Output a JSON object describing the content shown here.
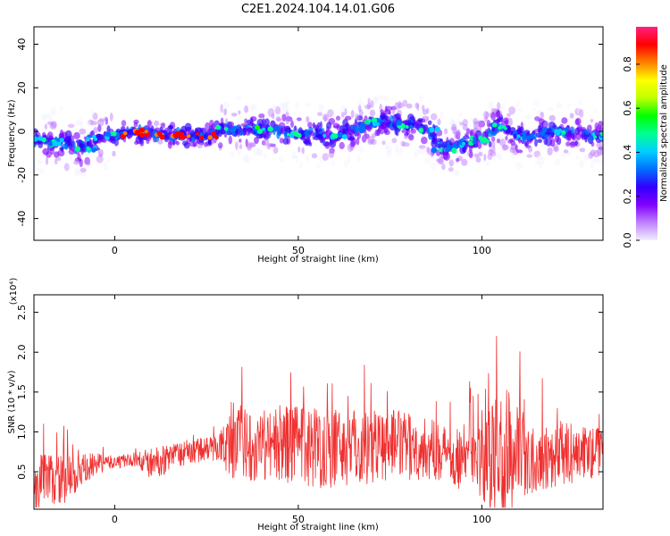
{
  "title": "C2E1.2024.104.14.01.G06",
  "colors": {
    "snr_line": "#f03030",
    "axis": "#000000",
    "colormap": [
      "#f0f0ff",
      "#c080ff",
      "#8000ff",
      "#3000ff",
      "#0070ff",
      "#00d0ff",
      "#00ff90",
      "#00ff00",
      "#c0ff00",
      "#ffff00",
      "#ff8000",
      "#ff0000",
      "#ff2080"
    ]
  },
  "chart_data": [
    {
      "type": "heatmap",
      "xlabel": "Height of straight line (km)",
      "ylabel": "Frequency (Hz)",
      "xlim": [
        -22,
        133
      ],
      "ylim": [
        -50,
        48
      ],
      "x_ticks": [
        0,
        50,
        100
      ],
      "y_ticks": [
        -40,
        -20,
        0,
        20,
        40
      ],
      "colorbar": {
        "label": "Normalized spectral amplitude",
        "range": [
          0,
          0.97
        ],
        "ticks": [
          0.0,
          0.2,
          0.4,
          0.6,
          0.8
        ]
      },
      "ridge": [
        {
          "x": -22,
          "f": -4
        },
        {
          "x": -15,
          "f": -5
        },
        {
          "x": -8,
          "f": -8
        },
        {
          "x": -5,
          "f": -3
        },
        {
          "x": 0,
          "f": -2
        },
        {
          "x": 5,
          "f": 0
        },
        {
          "x": 10,
          "f": -1
        },
        {
          "x": 15,
          "f": -2
        },
        {
          "x": 20,
          "f": -2
        },
        {
          "x": 25,
          "f": -2
        },
        {
          "x": 30,
          "f": 1
        },
        {
          "x": 40,
          "f": 1
        },
        {
          "x": 50,
          "f": -1
        },
        {
          "x": 60,
          "f": -2
        },
        {
          "x": 70,
          "f": 4
        },
        {
          "x": 80,
          "f": 3
        },
        {
          "x": 85,
          "f": 1
        },
        {
          "x": 90,
          "f": -8
        },
        {
          "x": 95,
          "f": -6
        },
        {
          "x": 100,
          "f": -4
        },
        {
          "x": 105,
          "f": 2
        },
        {
          "x": 112,
          "f": -3
        },
        {
          "x": 120,
          "f": 0
        },
        {
          "x": 133,
          "f": -2
        }
      ]
    },
    {
      "type": "line",
      "xlabel": "Height of straight line (km)",
      "ylabel": "SNR (10 * v/v)",
      "y_multiplier": "(x10⁴)",
      "xlim": [
        -22,
        133
      ],
      "ylim": [
        0.03,
        2.72
      ],
      "x_ticks": [
        0,
        50,
        100
      ],
      "y_ticks": [
        0.5,
        1.0,
        1.5,
        2.0,
        2.5
      ],
      "series": [
        {
          "envelope": [
            {
              "x": -22,
              "base": 0.35,
              "amp": 0.9
            },
            {
              "x": -10,
              "base": 0.45,
              "amp": 0.6
            },
            {
              "x": -5,
              "base": 0.6,
              "amp": 0.3
            },
            {
              "x": 0,
              "base": 0.62,
              "amp": 0.18
            },
            {
              "x": 5,
              "base": 0.65,
              "amp": 0.2
            },
            {
              "x": 10,
              "base": 0.6,
              "amp": 0.45
            },
            {
              "x": 20,
              "base": 0.75,
              "amp": 0.35
            },
            {
              "x": 28,
              "base": 0.8,
              "amp": 0.35
            },
            {
              "x": 32,
              "base": 0.85,
              "amp": 1.0
            },
            {
              "x": 45,
              "base": 0.85,
              "amp": 1.1
            },
            {
              "x": 60,
              "base": 0.8,
              "amp": 1.2
            },
            {
              "x": 75,
              "base": 0.85,
              "amp": 1.0
            },
            {
              "x": 90,
              "base": 0.75,
              "amp": 0.8
            },
            {
              "x": 100,
              "base": 0.6,
              "amp": 1.1
            },
            {
              "x": 106,
              "base": 0.7,
              "amp": 2.0
            },
            {
              "x": 115,
              "base": 0.7,
              "amp": 1.0
            },
            {
              "x": 133,
              "base": 0.75,
              "amp": 0.7
            }
          ]
        }
      ]
    }
  ]
}
